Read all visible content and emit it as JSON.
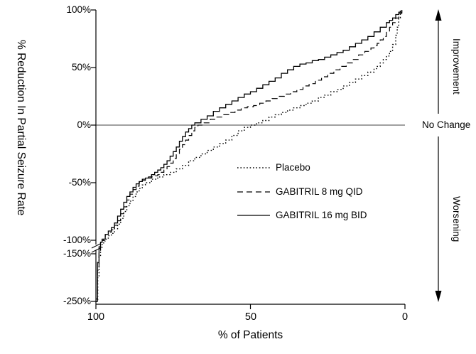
{
  "chart_data": {
    "type": "line",
    "title": "",
    "xlabel": "% of Patients",
    "ylabel": "% Reduction In Partial Seizure Rate",
    "x_axis": {
      "range": [
        100,
        0
      ],
      "reversed": true,
      "ticks": [
        100,
        50,
        0
      ],
      "tick_labels": [
        "100",
        "50",
        "0"
      ]
    },
    "y_axis": {
      "tick_values": [
        100,
        50,
        0,
        -50,
        -100,
        -150,
        -250
      ],
      "tick_labels": [
        "100%",
        "50%",
        "0%",
        "-50%",
        "-100%",
        "-150%",
        "-250%"
      ],
      "break_between": [
        -100,
        -150
      ],
      "units": "percent"
    },
    "reference_line_y": 0,
    "right_annotations": [
      "Improvement",
      "No Change",
      "Worsening"
    ],
    "legend": {
      "position": "inside-lower-middle",
      "entries": [
        {
          "label": "Placebo",
          "line_style": "dotted"
        },
        {
          "label": "GABITRIL 8 mg QID",
          "line_style": "dashed"
        },
        {
          "label": "GABITRIL 16 mg BID",
          "line_style": "solid"
        }
      ]
    },
    "series": [
      {
        "name": "Placebo",
        "line_style": "dotted",
        "points": [
          [
            100,
            -250
          ],
          [
            99.4,
            -198
          ],
          [
            99,
            -155
          ],
          [
            98.5,
            -126
          ],
          [
            98,
            -110
          ],
          [
            97.5,
            -102
          ],
          [
            97,
            -99
          ],
          [
            96,
            -96
          ],
          [
            95,
            -94
          ],
          [
            94,
            -90
          ],
          [
            93,
            -86
          ],
          [
            92,
            -81
          ],
          [
            91,
            -75
          ],
          [
            90,
            -70
          ],
          [
            89,
            -66
          ],
          [
            88,
            -62
          ],
          [
            87,
            -58
          ],
          [
            86,
            -55
          ],
          [
            85,
            -52
          ],
          [
            84,
            -50
          ],
          [
            82,
            -47
          ],
          [
            80,
            -45
          ],
          [
            78,
            -43
          ],
          [
            76,
            -41
          ],
          [
            74,
            -38
          ],
          [
            72,
            -35
          ],
          [
            70,
            -31
          ],
          [
            68,
            -28
          ],
          [
            66,
            -25
          ],
          [
            64,
            -22
          ],
          [
            62,
            -19
          ],
          [
            60,
            -16
          ],
          [
            58,
            -13
          ],
          [
            56,
            -9
          ],
          [
            54,
            -5
          ],
          [
            52,
            -2
          ],
          [
            50,
            0
          ],
          [
            48,
            2
          ],
          [
            46,
            4
          ],
          [
            44,
            7
          ],
          [
            42,
            9
          ],
          [
            40,
            11
          ],
          [
            38,
            13
          ],
          [
            36,
            15
          ],
          [
            34,
            17
          ],
          [
            32,
            19
          ],
          [
            30,
            21
          ],
          [
            28,
            24
          ],
          [
            26,
            26
          ],
          [
            24,
            29
          ],
          [
            22,
            31
          ],
          [
            20,
            34
          ],
          [
            18,
            37
          ],
          [
            16,
            40
          ],
          [
            14,
            43
          ],
          [
            12,
            46
          ],
          [
            10,
            49
          ],
          [
            9,
            51
          ],
          [
            8,
            54
          ],
          [
            7,
            57
          ],
          [
            6,
            60
          ],
          [
            5,
            64
          ],
          [
            4,
            70
          ],
          [
            3,
            78
          ],
          [
            2.5,
            85
          ],
          [
            2,
            93
          ],
          [
            1.5,
            100
          ]
        ]
      },
      {
        "name": "GABITRIL 8 mg QID",
        "line_style": "dashed",
        "points": [
          [
            100,
            -250
          ],
          [
            99.5,
            -185
          ],
          [
            99,
            -138
          ],
          [
            98.5,
            -112
          ],
          [
            98,
            -101
          ],
          [
            97.5,
            -97
          ],
          [
            97,
            -95
          ],
          [
            96,
            -93
          ],
          [
            95,
            -91
          ],
          [
            94,
            -87
          ],
          [
            93,
            -83
          ],
          [
            92,
            -77
          ],
          [
            91,
            -71
          ],
          [
            90,
            -65
          ],
          [
            89,
            -60
          ],
          [
            88,
            -56
          ],
          [
            87,
            -53
          ],
          [
            86,
            -50
          ],
          [
            85,
            -48
          ],
          [
            84,
            -47
          ],
          [
            83,
            -46
          ],
          [
            82,
            -45
          ],
          [
            81,
            -44
          ],
          [
            80,
            -43
          ],
          [
            79,
            -41
          ],
          [
            78,
            -39
          ],
          [
            77,
            -36
          ],
          [
            76,
            -33
          ],
          [
            75,
            -29
          ],
          [
            74,
            -25
          ],
          [
            73,
            -21
          ],
          [
            72,
            -17
          ],
          [
            71,
            -13
          ],
          [
            70,
            -9
          ],
          [
            69,
            -5
          ],
          [
            68,
            -2
          ],
          [
            67,
            0
          ],
          [
            65,
            2
          ],
          [
            63,
            5
          ],
          [
            61,
            7
          ],
          [
            59,
            9
          ],
          [
            57,
            11
          ],
          [
            55,
            13
          ],
          [
            53,
            15
          ],
          [
            51,
            16
          ],
          [
            49,
            17
          ],
          [
            47,
            19
          ],
          [
            45,
            21
          ],
          [
            43,
            23
          ],
          [
            41,
            25
          ],
          [
            39,
            27
          ],
          [
            37,
            29
          ],
          [
            35,
            31
          ],
          [
            33,
            34
          ],
          [
            31,
            36
          ],
          [
            29,
            39
          ],
          [
            27,
            42
          ],
          [
            25,
            45
          ],
          [
            23,
            48
          ],
          [
            21,
            51
          ],
          [
            19,
            54
          ],
          [
            17,
            57
          ],
          [
            15,
            61
          ],
          [
            13,
            64
          ],
          [
            11,
            67
          ],
          [
            10,
            69
          ],
          [
            9,
            71
          ],
          [
            8,
            74
          ],
          [
            7,
            77
          ],
          [
            6,
            81
          ],
          [
            5,
            85
          ],
          [
            4,
            89
          ],
          [
            3,
            93
          ],
          [
            2,
            97
          ],
          [
            1,
            100
          ]
        ]
      },
      {
        "name": "GABITRIL 16 mg BID",
        "line_style": "solid",
        "points": [
          [
            100,
            -245
          ],
          [
            99.5,
            -168
          ],
          [
            99,
            -124
          ],
          [
            98.5,
            -107
          ],
          [
            98,
            -99
          ],
          [
            97,
            -95
          ],
          [
            96,
            -92
          ],
          [
            95,
            -89
          ],
          [
            94,
            -85
          ],
          [
            93,
            -79
          ],
          [
            92,
            -73
          ],
          [
            91,
            -67
          ],
          [
            90,
            -62
          ],
          [
            89,
            -58
          ],
          [
            88,
            -54
          ],
          [
            87,
            -51
          ],
          [
            86,
            -49
          ],
          [
            85,
            -47
          ],
          [
            84,
            -46
          ],
          [
            83,
            -45
          ],
          [
            82,
            -43
          ],
          [
            81,
            -41
          ],
          [
            80,
            -39
          ],
          [
            79,
            -37
          ],
          [
            78,
            -34
          ],
          [
            77,
            -31
          ],
          [
            76,
            -27
          ],
          [
            75,
            -23
          ],
          [
            74,
            -19
          ],
          [
            73,
            -14
          ],
          [
            72,
            -10
          ],
          [
            71,
            -6
          ],
          [
            70,
            -3
          ],
          [
            69,
            0
          ],
          [
            68,
            2
          ],
          [
            66,
            5
          ],
          [
            64,
            8
          ],
          [
            62,
            12
          ],
          [
            60,
            15
          ],
          [
            58,
            18
          ],
          [
            56,
            21
          ],
          [
            54,
            24
          ],
          [
            52,
            27
          ],
          [
            50,
            29
          ],
          [
            48,
            32
          ],
          [
            46,
            35
          ],
          [
            44,
            38
          ],
          [
            42,
            41
          ],
          [
            40,
            45
          ],
          [
            38,
            48
          ],
          [
            36,
            51
          ],
          [
            34,
            53
          ],
          [
            32,
            54
          ],
          [
            30,
            56
          ],
          [
            28,
            57
          ],
          [
            26,
            59
          ],
          [
            24,
            61
          ],
          [
            22,
            63
          ],
          [
            20,
            65
          ],
          [
            18,
            68
          ],
          [
            16,
            71
          ],
          [
            14,
            74
          ],
          [
            12,
            77
          ],
          [
            10,
            81
          ],
          [
            8,
            85
          ],
          [
            6,
            89
          ],
          [
            5,
            91
          ],
          [
            4,
            93
          ],
          [
            3,
            96
          ],
          [
            2,
            98
          ],
          [
            1,
            100
          ]
        ]
      }
    ]
  }
}
